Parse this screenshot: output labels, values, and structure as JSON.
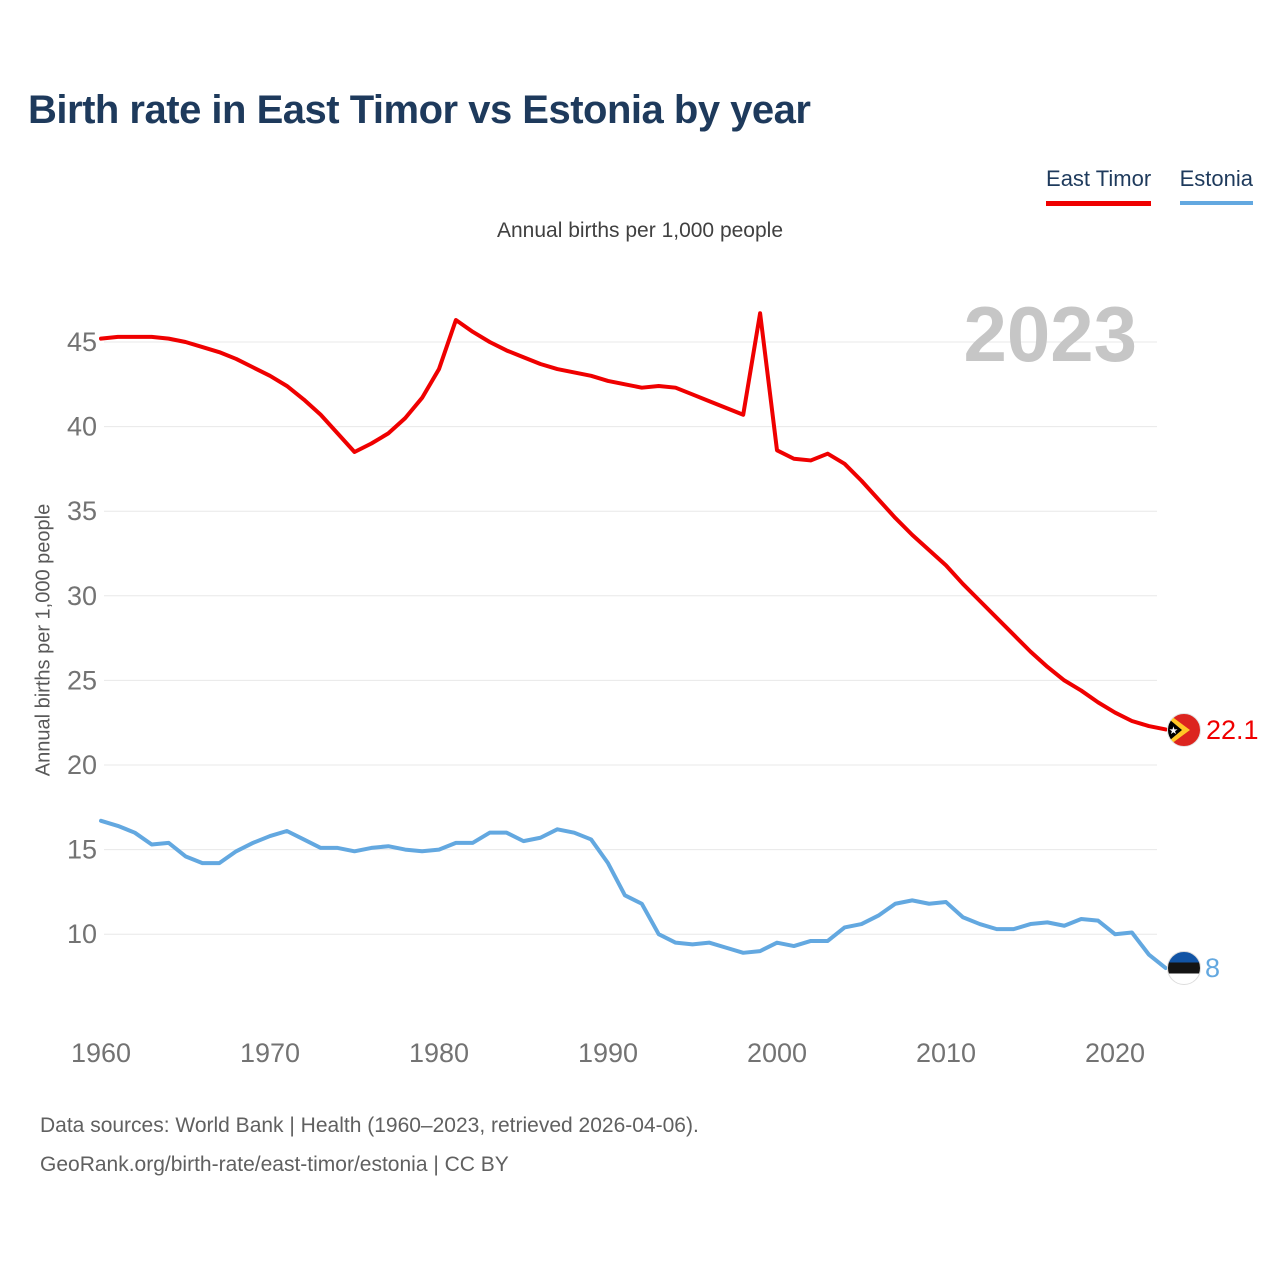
{
  "header": {
    "title": "Birth rate in East Timor vs Estonia by year"
  },
  "subtitle": "Annual births per 1,000 people",
  "watermark": "2023",
  "end_labels": {
    "east_timor": "22.1",
    "estonia": "8"
  },
  "footer": {
    "line1": "Data sources: World Bank | Health (1960–2023, retrieved 2026-04-06).",
    "line2": "GeoRank.org/birth-rate/east-timor/estonia | CC BY"
  },
  "colors": {
    "east_timor": "#ef0000",
    "estonia": "#63a8e0",
    "title_navy": "#1e3a5c",
    "tick_gray": "#737373",
    "gridline": "#e8e8e8",
    "watermark_gray": "#c6c6c6"
  },
  "chart_data": {
    "type": "line",
    "title": "Birth rate in East Timor vs Estonia by year",
    "subtitle": "Annual births per 1,000 people",
    "xlabel": "",
    "ylabel": "Annual births per 1,000 people",
    "grid": "horizontal",
    "legend_position": "top-right",
    "ylim": [
      7,
      47.5
    ],
    "xticks": [
      1960,
      1970,
      1980,
      1990,
      2000,
      2010,
      2020
    ],
    "yticks": [
      10,
      15,
      20,
      25,
      30,
      35,
      40,
      45
    ],
    "x": [
      1960,
      1961,
      1962,
      1963,
      1964,
      1965,
      1966,
      1967,
      1968,
      1969,
      1970,
      1971,
      1972,
      1973,
      1974,
      1975,
      1976,
      1977,
      1978,
      1979,
      1980,
      1981,
      1982,
      1983,
      1984,
      1985,
      1986,
      1987,
      1988,
      1989,
      1990,
      1991,
      1992,
      1993,
      1994,
      1995,
      1996,
      1997,
      1998,
      1999,
      2000,
      2001,
      2002,
      2003,
      2004,
      2005,
      2006,
      2007,
      2008,
      2009,
      2010,
      2011,
      2012,
      2013,
      2014,
      2015,
      2016,
      2017,
      2018,
      2019,
      2020,
      2021,
      2022,
      2023
    ],
    "series": [
      {
        "name": "East Timor",
        "color": "#ef0000",
        "final_value": 22.1,
        "values": [
          45.2,
          45.3,
          45.3,
          45.3,
          45.2,
          45.0,
          44.7,
          44.4,
          44.0,
          43.5,
          43.0,
          42.4,
          41.6,
          40.7,
          39.6,
          38.5,
          39.0,
          39.6,
          40.5,
          41.7,
          43.4,
          46.3,
          45.6,
          45.0,
          44.5,
          44.1,
          43.7,
          43.4,
          43.2,
          43.0,
          42.7,
          42.5,
          42.3,
          42.4,
          42.3,
          41.9,
          41.5,
          41.1,
          40.7,
          46.7,
          38.6,
          38.1,
          38.0,
          38.4,
          37.8,
          36.8,
          35.7,
          34.6,
          33.6,
          32.7,
          31.8,
          30.7,
          29.7,
          28.7,
          27.7,
          26.7,
          25.8,
          25.0,
          24.4,
          23.7,
          23.1,
          22.6,
          22.3,
          22.1
        ]
      },
      {
        "name": "Estonia",
        "color": "#63a8e0",
        "final_value": 8,
        "values": [
          16.7,
          16.4,
          16.0,
          15.3,
          15.4,
          14.6,
          14.2,
          14.2,
          14.9,
          15.4,
          15.8,
          16.1,
          15.6,
          15.1,
          15.1,
          14.9,
          15.1,
          15.2,
          15.0,
          14.9,
          15.0,
          15.4,
          15.4,
          16.0,
          16.0,
          15.5,
          15.7,
          16.2,
          16.0,
          15.6,
          14.2,
          12.3,
          11.8,
          10.0,
          9.5,
          9.4,
          9.5,
          9.2,
          8.9,
          9.0,
          9.5,
          9.3,
          9.6,
          9.6,
          10.4,
          10.6,
          11.1,
          11.8,
          12.0,
          11.8,
          11.9,
          11.0,
          10.6,
          10.3,
          10.3,
          10.6,
          10.7,
          10.5,
          10.9,
          10.8,
          10.0,
          10.1,
          8.8,
          8.0
        ]
      }
    ]
  }
}
